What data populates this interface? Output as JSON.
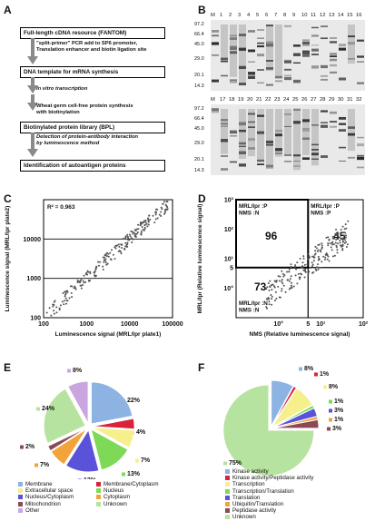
{
  "panels": {
    "a": "A",
    "b": "B",
    "c": "C",
    "d": "D",
    "e": "E",
    "f": "F"
  },
  "flow": {
    "box1": "Full-length cDNA resource (FANTOM)",
    "note1": "\"split-primer\" PCR add to SP6 promoter,\nTranslation enhancer and biotin ligation site",
    "box2": "DNA template for mRNA synthesis",
    "note2": "In vitro transcription",
    "note3": "Wheat germ cell-free protein synthesis\nwith biotinylation",
    "box3": "Biotinylated protein library (BPL)",
    "note4": "Detection of protein-antibody interaction\nby luminescence method",
    "box4": "Identification of autoantigen proteins"
  },
  "gel": {
    "top_lanes": [
      "M",
      "1",
      "2",
      "3",
      "4",
      "5",
      "6",
      "7",
      "8",
      "9",
      "10",
      "11",
      "12",
      "13",
      "14",
      "15",
      "16"
    ],
    "bottom_lanes": [
      "M",
      "17",
      "18",
      "19",
      "20",
      "21",
      "22",
      "23",
      "24",
      "25",
      "26",
      "27",
      "28",
      "29",
      "30",
      "31",
      "32"
    ],
    "markers": [
      "97.2",
      "66.4",
      "45.0",
      "29.0",
      "20.1",
      "14.3"
    ]
  },
  "chart_data": [
    {
      "type": "scatter",
      "id": "C",
      "xlabel": "Luminescence signal (MRL/lpr plate1)",
      "ylabel": "Luminescence signal (MRL/lpr plate2)",
      "xscale": "log",
      "yscale": "log",
      "xlim": [
        100,
        100000
      ],
      "ylim": [
        100,
        100000
      ],
      "xticks": [
        "100",
        "1000",
        "10000",
        "100000"
      ],
      "yticks": [
        "100",
        "1000",
        "10000"
      ],
      "annotation": "R² = 0.963"
    },
    {
      "type": "scatter",
      "id": "D",
      "xlabel": "NMS (Relative luminescence signal)",
      "ylabel": "MRL/lpr (Relative luminescence signal)",
      "xscale": "log",
      "yscale": "log",
      "xlim": [
        0.1,
        100
      ],
      "ylim": [
        0.1,
        1000
      ],
      "xticks": [
        "10°",
        "5",
        "10¹",
        "10²"
      ],
      "yticks": [
        "10°",
        "5",
        "10¹",
        "10²",
        "10³"
      ],
      "quadrants": [
        {
          "count": "96",
          "label": "MRL/lpr :P\nNMS       :N",
          "position": "top-left"
        },
        {
          "count": "45",
          "label": "MRL/lpr :P\nNMS       :P",
          "position": "top-right"
        },
        {
          "count": "73",
          "label": "MRL/lpr :N\nNMS       :N",
          "position": "bottom-left"
        }
      ]
    },
    {
      "type": "pie",
      "id": "E",
      "slices": [
        {
          "name": "Membrane",
          "value": 22,
          "label": "22%",
          "color": "#8db3e2"
        },
        {
          "name": "Membrane/Cytoplasm",
          "value": 4,
          "label": "4%",
          "color": "#d9233a"
        },
        {
          "name": "Extracellular space",
          "value": 7,
          "label": "7%",
          "color": "#f6f08c"
        },
        {
          "name": "Nucleus",
          "value": 13,
          "label": "13%",
          "color": "#7ed957"
        },
        {
          "name": "Nucleus/Cytoplasm",
          "value": 13,
          "label": "13%",
          "color": "#5a52d9"
        },
        {
          "name": "Cytoplasm",
          "value": 7,
          "label": "7%",
          "color": "#f2a33a"
        },
        {
          "name": "Mitochondrion",
          "value": 2,
          "label": "2%",
          "color": "#8c4a55"
        },
        {
          "name": "Unknown",
          "value": 24,
          "label": "24%",
          "color": "#b7e3a0"
        },
        {
          "name": "Other",
          "value": 8,
          "label": "8%",
          "color": "#c9a6e0"
        }
      ],
      "legend": [
        [
          "Membrane",
          "Membrane/Cytoplasm"
        ],
        [
          "Extracellular space",
          "Nucleus"
        ],
        [
          "Nucleus/Cytoplasm",
          "Cytoplasm"
        ],
        [
          "Mitochondrion",
          "Unknown"
        ],
        [
          "Other",
          ""
        ]
      ]
    },
    {
      "type": "pie",
      "id": "F",
      "slices": [
        {
          "name": "Kinase activity",
          "value": 8,
          "label": "8%",
          "color": "#8db3e2"
        },
        {
          "name": "Kinase activity/Peptidase activity",
          "value": 1,
          "label": "1%",
          "color": "#d9233a"
        },
        {
          "name": "Transcription",
          "value": 8,
          "label": "8%",
          "color": "#f6f08c"
        },
        {
          "name": "Transcription/Translation",
          "value": 1,
          "label": "1%",
          "color": "#7ed957"
        },
        {
          "name": "Translation",
          "value": 3,
          "label": "3%",
          "color": "#5a52d9"
        },
        {
          "name": "Ubiquitin/Translation",
          "value": 1,
          "label": "1%",
          "color": "#f2a33a"
        },
        {
          "name": "Peptidase activity",
          "value": 3,
          "label": "3%",
          "color": "#8c4a55"
        },
        {
          "name": "Unknown",
          "value": 75,
          "label": "75%",
          "color": "#b7e3a0"
        }
      ]
    }
  ]
}
